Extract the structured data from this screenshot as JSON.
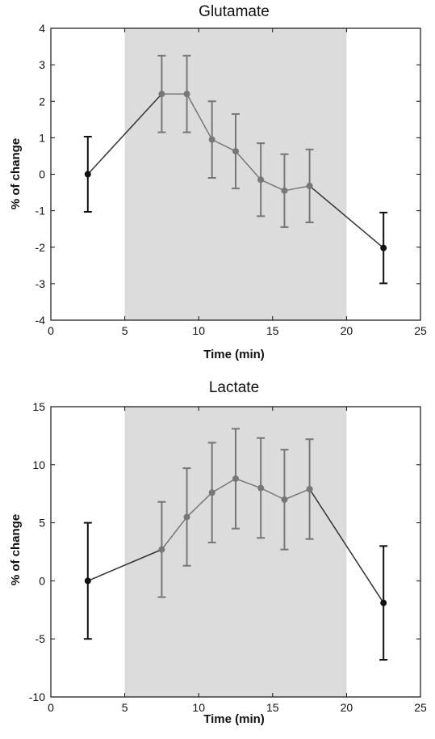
{
  "chart_data": [
    {
      "type": "line",
      "title": "Glutamate",
      "xlabel": "Time (min)",
      "ylabel": "% of change",
      "xlim": [
        0,
        25
      ],
      "ylim": [
        -4,
        4
      ],
      "xticks": [
        0,
        5,
        10,
        15,
        20,
        25
      ],
      "yticks": [
        -4,
        -3,
        -2,
        -1,
        0,
        1,
        2,
        3,
        4
      ],
      "grid": false,
      "shaded_region": {
        "x_start": 5,
        "x_end": 20,
        "color": "#dcdcdc"
      },
      "series": [
        {
          "color": "#777777",
          "points": [
            {
              "x": 7.5,
              "y": 2.2,
              "err": 1.05
            },
            {
              "x": 9.2,
              "y": 2.2,
              "err": 1.05
            },
            {
              "x": 10.9,
              "y": 0.95,
              "err": 1.05
            },
            {
              "x": 12.5,
              "y": 0.63,
              "err": 1.02
            },
            {
              "x": 14.2,
              "y": -0.15,
              "err": 1.0
            },
            {
              "x": 15.8,
              "y": -0.45,
              "err": 1.0
            },
            {
              "x": 17.5,
              "y": -0.32,
              "err": 1.0
            }
          ]
        },
        {
          "color": "#111111",
          "points": [
            {
              "x": 2.5,
              "y": 0.0,
              "err": 1.03
            },
            {
              "x": 22.5,
              "y": -2.02,
              "err": 0.97
            }
          ]
        }
      ],
      "connect_order": [
        "2.5",
        "7.5",
        "9.2",
        "10.9",
        "12.5",
        "14.2",
        "15.8",
        "17.5",
        "22.5"
      ]
    },
    {
      "type": "line",
      "title": "Lactate",
      "xlabel": "Time (min)",
      "ylabel": "% of change",
      "xlim": [
        0,
        25
      ],
      "ylim": [
        -10,
        15
      ],
      "xticks": [
        0,
        5,
        10,
        15,
        20,
        25
      ],
      "yticks": [
        -10,
        -5,
        0,
        5,
        10,
        15
      ],
      "grid": false,
      "shaded_region": {
        "x_start": 5,
        "x_end": 20,
        "color": "#dcdcdc"
      },
      "series": [
        {
          "color": "#777777",
          "points": [
            {
              "x": 7.5,
              "y": 2.7,
              "err": 4.1
            },
            {
              "x": 9.2,
              "y": 5.5,
              "err": 4.2
            },
            {
              "x": 10.9,
              "y": 7.6,
              "err": 4.3
            },
            {
              "x": 12.5,
              "y": 8.8,
              "err": 4.3
            },
            {
              "x": 14.2,
              "y": 8.0,
              "err": 4.3
            },
            {
              "x": 15.8,
              "y": 7.0,
              "err": 4.3
            },
            {
              "x": 17.5,
              "y": 7.9,
              "err": 4.3
            }
          ]
        },
        {
          "color": "#111111",
          "points": [
            {
              "x": 2.5,
              "y": 0.0,
              "err": 5.0
            },
            {
              "x": 22.5,
              "y": -1.9,
              "err": 4.9
            }
          ]
        }
      ]
    }
  ]
}
